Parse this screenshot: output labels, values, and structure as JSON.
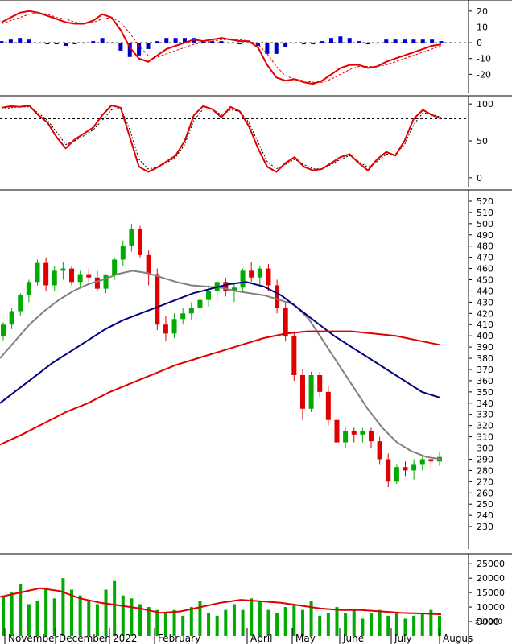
{
  "chart_data": [
    {
      "type": "line",
      "panel": "macd",
      "ylim": [
        -30,
        25
      ],
      "yticks": [
        20,
        10,
        0,
        -10,
        -20
      ],
      "zero_line": 0,
      "series": [
        {
          "role": "macd",
          "color": "#e00000",
          "values": [
            13,
            16,
            19,
            20,
            19,
            17,
            15,
            13,
            12,
            12,
            14,
            18,
            16,
            8,
            -3,
            -10,
            -12,
            -8,
            -4,
            -2,
            0,
            2,
            1,
            2,
            3,
            2,
            1,
            1,
            -3,
            -14,
            -22,
            -24,
            -23,
            -25,
            -26,
            -24,
            -20,
            -16,
            -14,
            -14,
            -16,
            -15,
            -12,
            -10,
            -8,
            -6,
            -4,
            -2,
            -1
          ]
        },
        {
          "role": "signal",
          "color": "#e00000",
          "dashed": true,
          "values": [
            12,
            14,
            16,
            18,
            19,
            18,
            16,
            15,
            13,
            12,
            13,
            15,
            16,
            13,
            6,
            -2,
            -8,
            -9,
            -7,
            -5,
            -3,
            -1,
            0,
            1,
            2,
            2,
            2,
            1,
            -1,
            -7,
            -15,
            -21,
            -23,
            -24,
            -25,
            -25,
            -23,
            -20,
            -17,
            -15,
            -15,
            -15,
            -14,
            -12,
            -10,
            -8,
            -6,
            -4,
            -2
          ]
        },
        {
          "role": "histogram",
          "color": "#0000cc",
          "values": [
            1,
            2,
            3,
            2,
            0,
            -1,
            -1,
            -2,
            -1,
            0,
            1,
            3,
            0,
            -5,
            -9,
            -8,
            -4,
            1,
            3,
            3,
            3,
            3,
            1,
            1,
            1,
            0,
            -1,
            0,
            -2,
            -7,
            -7,
            -3,
            0,
            -1,
            -1,
            1,
            3,
            4,
            3,
            1,
            -1,
            0,
            2,
            2,
            2,
            2,
            2,
            2,
            1
          ]
        }
      ]
    },
    {
      "type": "line",
      "panel": "stochastic",
      "ylim": [
        -10,
        110
      ],
      "yticks": [
        100,
        50,
        0
      ],
      "hlines": [
        80,
        20
      ],
      "series": [
        {
          "role": "fast",
          "color": "#e00000",
          "values": [
            95,
            97,
            96,
            98,
            85,
            75,
            55,
            40,
            52,
            60,
            68,
            85,
            98,
            95,
            55,
            15,
            8,
            14,
            22,
            30,
            50,
            85,
            97,
            93,
            82,
            96,
            90,
            70,
            40,
            15,
            8,
            20,
            28,
            15,
            10,
            12,
            20,
            28,
            32,
            20,
            10,
            25,
            35,
            30,
            50,
            80,
            92,
            85,
            80
          ]
        },
        {
          "role": "slow",
          "color": "#000000",
          "dashed": true,
          "values": [
            93,
            95,
            96,
            96,
            88,
            78,
            62,
            45,
            50,
            57,
            65,
            78,
            92,
            95,
            65,
            25,
            12,
            14,
            20,
            28,
            45,
            78,
            93,
            93,
            85,
            92,
            90,
            75,
            48,
            22,
            12,
            18,
            25,
            18,
            12,
            12,
            18,
            25,
            30,
            22,
            14,
            22,
            32,
            32,
            45,
            72,
            88,
            86,
            82
          ]
        }
      ]
    },
    {
      "type": "candlestick",
      "panel": "price",
      "x_axis_months": [
        "November",
        "December",
        "2022",
        "February",
        "April",
        "May",
        "June",
        "July",
        "Augus"
      ],
      "ylim": [
        220,
        525
      ],
      "yticks": [
        520,
        510,
        500,
        490,
        480,
        470,
        460,
        450,
        440,
        430,
        420,
        410,
        400,
        390,
        380,
        370,
        360,
        350,
        340,
        330,
        320,
        310,
        300,
        290,
        280,
        270,
        260,
        250,
        240,
        230
      ],
      "up_color": "#00aa00",
      "down_color": "#e00000",
      "candles": [
        [
          400,
          412,
          396,
          410
        ],
        [
          410,
          425,
          406,
          422
        ],
        [
          422,
          438,
          418,
          436
        ],
        [
          436,
          450,
          430,
          448
        ],
        [
          448,
          468,
          445,
          465
        ],
        [
          465,
          470,
          440,
          445
        ],
        [
          445,
          462,
          440,
          458
        ],
        [
          458,
          466,
          450,
          460
        ],
        [
          460,
          462,
          445,
          448
        ],
        [
          448,
          458,
          444,
          455
        ],
        [
          455,
          460,
          448,
          452
        ],
        [
          452,
          458,
          440,
          442
        ],
        [
          442,
          455,
          438,
          454
        ],
        [
          454,
          470,
          450,
          468
        ],
        [
          468,
          485,
          462,
          480
        ],
        [
          480,
          500,
          475,
          495
        ],
        [
          495,
          498,
          470,
          472
        ],
        [
          472,
          476,
          445,
          455
        ],
        [
          455,
          460,
          405,
          410
        ],
        [
          410,
          418,
          395,
          402
        ],
        [
          402,
          420,
          398,
          415
        ],
        [
          415,
          425,
          410,
          420
        ],
        [
          420,
          430,
          414,
          425
        ],
        [
          425,
          438,
          420,
          432
        ],
        [
          432,
          445,
          426,
          440
        ],
        [
          440,
          450,
          432,
          448
        ],
        [
          448,
          452,
          435,
          440
        ],
        [
          440,
          446,
          430,
          443
        ],
        [
          443,
          460,
          440,
          458
        ],
        [
          458,
          466,
          448,
          452
        ],
        [
          452,
          462,
          444,
          460
        ],
        [
          460,
          464,
          440,
          445
        ],
        [
          445,
          450,
          420,
          425
        ],
        [
          425,
          430,
          395,
          400
        ],
        [
          400,
          404,
          360,
          365
        ],
        [
          365,
          370,
          325,
          335
        ],
        [
          335,
          368,
          332,
          365
        ],
        [
          365,
          368,
          345,
          350
        ],
        [
          350,
          355,
          320,
          325
        ],
        [
          325,
          330,
          300,
          305
        ],
        [
          305,
          318,
          300,
          315
        ],
        [
          315,
          318,
          305,
          312
        ],
        [
          312,
          318,
          305,
          315
        ],
        [
          315,
          318,
          300,
          306
        ],
        [
          306,
          310,
          285,
          290
        ],
        [
          290,
          295,
          265,
          270
        ],
        [
          270,
          285,
          268,
          283
        ],
        [
          283,
          288,
          275,
          280
        ],
        [
          280,
          290,
          272,
          285
        ],
        [
          285,
          293,
          280,
          290
        ],
        [
          290,
          295,
          282,
          288
        ],
        [
          288,
          296,
          284,
          292
        ]
      ],
      "series": [
        {
          "name": "MA20",
          "color": "#808080",
          "values": [
            380,
            395,
            410,
            422,
            432,
            440,
            446,
            450,
            455,
            458,
            456,
            452,
            448,
            445,
            444,
            443,
            440,
            438,
            436,
            432,
            428,
            415,
            395,
            375,
            355,
            335,
            318,
            305,
            297,
            292,
            290
          ]
        },
        {
          "name": "MA50",
          "color": "#000080",
          "values": [
            340,
            352,
            364,
            376,
            386,
            396,
            406,
            414,
            420,
            426,
            432,
            438,
            442,
            446,
            448,
            444,
            436,
            424,
            412,
            400,
            390,
            380,
            370,
            360,
            350,
            345
          ]
        },
        {
          "name": "MA200",
          "color": "#e00000",
          "values": [
            303,
            312,
            322,
            332,
            340,
            350,
            358,
            366,
            374,
            380,
            386,
            392,
            398,
            402,
            404,
            404,
            404,
            402,
            400,
            396,
            392
          ]
        }
      ]
    },
    {
      "type": "bar",
      "panel": "volume",
      "unit_label": "x10000",
      "ylim": [
        0,
        27000
      ],
      "yticks": [
        25000,
        20000,
        15000,
        10000,
        5000
      ],
      "bar_color": "#00aa00",
      "values": [
        14000,
        15000,
        18000,
        11000,
        12000,
        16000,
        13000,
        20000,
        16000,
        14000,
        12000,
        11000,
        16000,
        19000,
        14000,
        13000,
        11000,
        10000,
        9000,
        8000,
        9000,
        7000,
        10000,
        12000,
        8000,
        7000,
        9000,
        11000,
        9000,
        13000,
        12000,
        9000,
        8000,
        10000,
        11000,
        9000,
        12000,
        7000,
        8000,
        10000,
        8000,
        9000,
        6000,
        8000,
        9000,
        7000,
        8000,
        6000,
        7000,
        8000,
        9000,
        7000
      ],
      "series": [
        {
          "name": "Volume MA",
          "color": "#e00000",
          "values": [
            13500,
            15000,
            16500,
            15500,
            13000,
            11500,
            10500,
            9500,
            8000,
            8500,
            10000,
            11500,
            12500,
            12000,
            11500,
            10500,
            9500,
            9000,
            9000,
            8500,
            8000,
            7800,
            7500
          ]
        }
      ]
    }
  ]
}
